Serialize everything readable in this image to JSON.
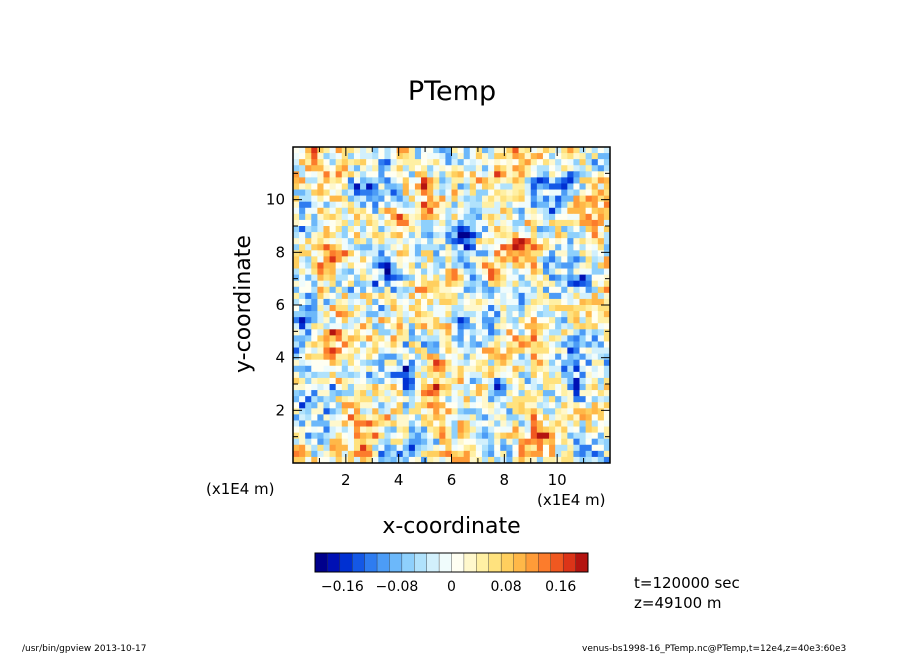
{
  "chart_data": {
    "type": "heatmap",
    "title": "PTemp",
    "xlabel": "x-coordinate",
    "ylabel": "y-coordinate",
    "x_scale_label": "(x1E4 m)",
    "y_scale_label": "(x1E4 m)",
    "xlim": [
      0,
      12
    ],
    "ylim": [
      0,
      12
    ],
    "x_ticks": [
      "2",
      "4",
      "6",
      "8",
      "10"
    ],
    "y_ticks": [
      "2",
      "4",
      "6",
      "8",
      "10"
    ],
    "colorbar": {
      "range": [
        -0.2,
        0.2
      ],
      "ticks": [
        {
          "value": -0.16,
          "label": "−0.16"
        },
        {
          "value": -0.08,
          "label": "−0.08"
        },
        {
          "value": 0,
          "label": "0"
        },
        {
          "value": 0.08,
          "label": "0.08"
        },
        {
          "value": 0.16,
          "label": "0.16"
        }
      ],
      "colors": [
        "#00008c",
        "#0010b4",
        "#0030d2",
        "#1458e6",
        "#2e7cf0",
        "#4c9cf6",
        "#6cb8fa",
        "#8ed0fc",
        "#b0e2fc",
        "#d2f0fc",
        "#f0fcfc",
        "#fffff2",
        "#fff8cc",
        "#fff0a4",
        "#ffe27e",
        "#ffcf5e",
        "#ffb848",
        "#ff9c38",
        "#fc7c2c",
        "#f05820",
        "#dc3418",
        "#b41410"
      ]
    }
  },
  "info": {
    "time": "t=120000 sec",
    "height": "z=49100 m"
  },
  "footer": {
    "left": "/usr/bin/gpview   2013-10-17",
    "right": "venus-bs1998-16_PTemp.nc@PTemp,t=12e4,z=40e3:60e3"
  }
}
